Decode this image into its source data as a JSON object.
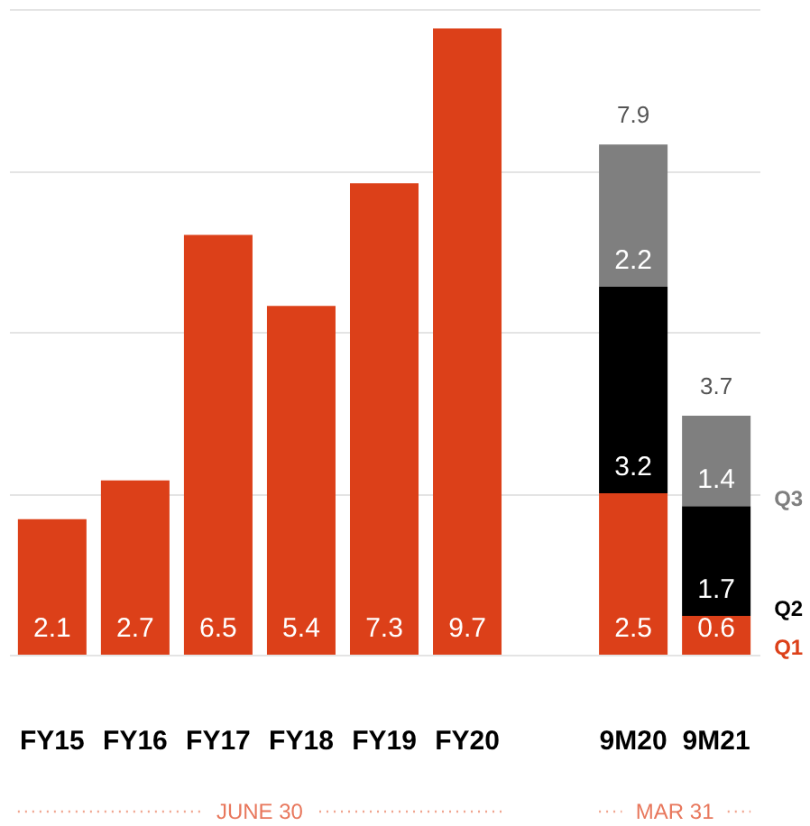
{
  "chart_data": {
    "type": "bar",
    "stacked": true,
    "categories": [
      "FY15",
      "FY16",
      "FY17",
      "FY18",
      "FY19",
      "FY20",
      null,
      "9M20",
      "9M21"
    ],
    "series": [
      {
        "color": "#dc4019",
        "values": [
          2.1,
          2.7,
          6.5,
          5.4,
          7.3,
          9.7,
          null,
          null,
          null
        ]
      },
      {
        "name": "Q1",
        "color": "#dc4019",
        "values": [
          null,
          null,
          null,
          null,
          null,
          null,
          null,
          2.5,
          0.6
        ]
      },
      {
        "name": "Q2",
        "color": "#000000",
        "values": [
          null,
          null,
          null,
          null,
          null,
          null,
          null,
          3.2,
          1.7
        ]
      },
      {
        "name": "Q3",
        "color": "#7f7f7f",
        "values": [
          null,
          null,
          null,
          null,
          null,
          null,
          null,
          2.2,
          1.4
        ]
      }
    ],
    "totals": [
      null,
      null,
      null,
      null,
      null,
      null,
      null,
      "7.9",
      "3.7"
    ],
    "data_labels": true,
    "ylim": [
      0,
      10
    ],
    "yticks": [
      {
        "value": 0,
        "label": null
      },
      {
        "value": 2.5,
        "label": null
      },
      {
        "value": 5,
        "label": null
      },
      {
        "value": 7.5,
        "label": null
      },
      {
        "value": 10,
        "label": null
      }
    ],
    "grid": "y",
    "tick_labels": "x",
    "annotations": [
      "JUNE 30",
      "MAR 31"
    ]
  }
}
